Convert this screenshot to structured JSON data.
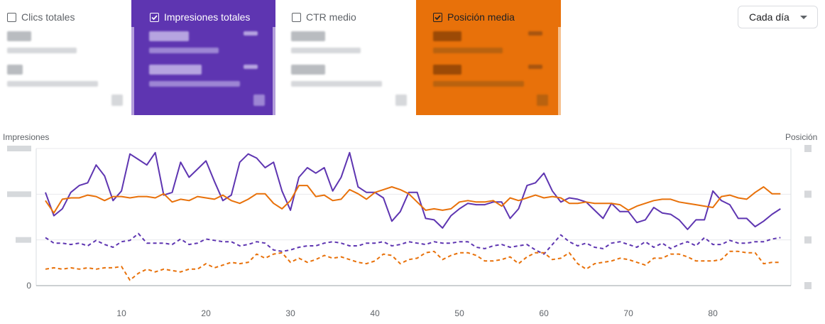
{
  "metrics": [
    {
      "label": "Clics totales",
      "checked": false
    },
    {
      "label": "Impresiones totales",
      "checked": true,
      "color": "#5e35b1"
    },
    {
      "label": "CTR medio",
      "checked": false
    },
    {
      "label": "Posición media",
      "checked": true,
      "color": "#e8710a"
    }
  ],
  "granularity": {
    "label": "Cada día"
  },
  "chart_data": {
    "type": "line",
    "left_axis_label": "Impresiones",
    "right_axis_label": "Posición",
    "y_left_min_label": "0",
    "x_ticks": [
      "10",
      "20",
      "30",
      "40",
      "50",
      "60",
      "70",
      "80"
    ],
    "series_colors": {
      "impressions": "#5e35b1",
      "position": "#e8710a"
    },
    "x": [
      1,
      2,
      3,
      4,
      5,
      6,
      7,
      8,
      9,
      10,
      11,
      12,
      13,
      14,
      15,
      16,
      17,
      18,
      19,
      20,
      21,
      22,
      23,
      24,
      25,
      26,
      27,
      28,
      29,
      30,
      31,
      32,
      33,
      34,
      35,
      36,
      37,
      38,
      39,
      40,
      41,
      42,
      43,
      44,
      45,
      46,
      47,
      48,
      49,
      50,
      51,
      52,
      53,
      54,
      55,
      56,
      57,
      58,
      59,
      60,
      61,
      62,
      63,
      64,
      65,
      66,
      67,
      68,
      69,
      70,
      71,
      72,
      73,
      74,
      75,
      76,
      77,
      78,
      79,
      80,
      81,
      82,
      83,
      84,
      85,
      86,
      87,
      88
    ],
    "series": [
      {
        "color": "#5e35b1",
        "style": "solid",
        "values": [
          0.68,
          0.51,
          0.56,
          0.68,
          0.73,
          0.75,
          0.88,
          0.8,
          0.62,
          0.69,
          0.96,
          0.92,
          0.88,
          0.97,
          0.66,
          0.68,
          0.9,
          0.79,
          0.85,
          0.91,
          0.76,
          0.62,
          0.66,
          0.9,
          0.96,
          0.93,
          0.86,
          0.9,
          0.69,
          0.55,
          0.79,
          0.86,
          0.82,
          0.86,
          0.69,
          0.79,
          0.97,
          0.72,
          0.68,
          0.68,
          0.64,
          0.47,
          0.54,
          0.68,
          0.68,
          0.49,
          0.48,
          0.42,
          0.51,
          0.56,
          0.6,
          0.59,
          0.59,
          0.61,
          0.61,
          0.49,
          0.56,
          0.73,
          0.75,
          0.82,
          0.69,
          0.61,
          0.64,
          0.63,
          0.61,
          0.55,
          0.49,
          0.6,
          0.54,
          0.54,
          0.46,
          0.48,
          0.57,
          0.53,
          0.52,
          0.48,
          0.41,
          0.48,
          0.48,
          0.69,
          0.62,
          0.59,
          0.49,
          0.49,
          0.43,
          0.47,
          0.52,
          0.56
        ]
      },
      {
        "color": "#e8710a",
        "style": "solid",
        "values": [
          0.62,
          0.53,
          0.63,
          0.64,
          0.64,
          0.66,
          0.65,
          0.62,
          0.65,
          0.65,
          0.64,
          0.65,
          0.65,
          0.64,
          0.67,
          0.61,
          0.63,
          0.62,
          0.65,
          0.64,
          0.63,
          0.66,
          0.62,
          0.6,
          0.63,
          0.67,
          0.67,
          0.6,
          0.56,
          0.62,
          0.73,
          0.73,
          0.65,
          0.66,
          0.62,
          0.63,
          0.7,
          0.67,
          0.63,
          0.68,
          0.7,
          0.72,
          0.7,
          0.67,
          0.61,
          0.55,
          0.56,
          0.55,
          0.56,
          0.61,
          0.62,
          0.61,
          0.61,
          0.62,
          0.58,
          0.64,
          0.62,
          0.64,
          0.66,
          0.64,
          0.65,
          0.64,
          0.6,
          0.6,
          0.61,
          0.6,
          0.6,
          0.6,
          0.59,
          0.55,
          0.58,
          0.6,
          0.62,
          0.63,
          0.63,
          0.61,
          0.6,
          0.59,
          0.58,
          0.57,
          0.65,
          0.66,
          0.64,
          0.63,
          0.68,
          0.72,
          0.67,
          0.67
        ]
      },
      {
        "color": "#5e35b1",
        "style": "dashed",
        "values": [
          0.35,
          0.31,
          0.31,
          0.3,
          0.31,
          0.29,
          0.33,
          0.3,
          0.28,
          0.32,
          0.33,
          0.38,
          0.31,
          0.31,
          0.31,
          0.3,
          0.34,
          0.3,
          0.31,
          0.34,
          0.33,
          0.32,
          0.32,
          0.29,
          0.3,
          0.32,
          0.31,
          0.26,
          0.25,
          0.26,
          0.28,
          0.29,
          0.29,
          0.31,
          0.32,
          0.31,
          0.29,
          0.29,
          0.31,
          0.31,
          0.32,
          0.29,
          0.3,
          0.32,
          0.31,
          0.3,
          0.32,
          0.31,
          0.31,
          0.32,
          0.32,
          0.28,
          0.27,
          0.29,
          0.3,
          0.28,
          0.29,
          0.3,
          0.26,
          0.23,
          0.3,
          0.37,
          0.32,
          0.29,
          0.31,
          0.28,
          0.27,
          0.31,
          0.32,
          0.3,
          0.28,
          0.32,
          0.28,
          0.31,
          0.27,
          0.3,
          0.32,
          0.29,
          0.35,
          0.3,
          0.3,
          0.33,
          0.31,
          0.31,
          0.32,
          0.32,
          0.34,
          0.35
        ]
      },
      {
        "color": "#e8710a",
        "style": "dashed",
        "values": [
          0.12,
          0.13,
          0.12,
          0.13,
          0.12,
          0.13,
          0.12,
          0.13,
          0.13,
          0.14,
          0.04,
          0.09,
          0.12,
          0.1,
          0.12,
          0.11,
          0.1,
          0.12,
          0.12,
          0.16,
          0.13,
          0.15,
          0.17,
          0.16,
          0.17,
          0.23,
          0.2,
          0.23,
          0.24,
          0.17,
          0.2,
          0.17,
          0.19,
          0.22,
          0.2,
          0.21,
          0.19,
          0.17,
          0.16,
          0.18,
          0.23,
          0.22,
          0.16,
          0.19,
          0.2,
          0.24,
          0.25,
          0.19,
          0.22,
          0.24,
          0.24,
          0.22,
          0.18,
          0.18,
          0.19,
          0.21,
          0.16,
          0.21,
          0.24,
          0.24,
          0.19,
          0.2,
          0.24,
          0.16,
          0.12,
          0.16,
          0.17,
          0.18,
          0.2,
          0.19,
          0.17,
          0.15,
          0.2,
          0.2,
          0.23,
          0.23,
          0.21,
          0.18,
          0.18,
          0.18,
          0.19,
          0.25,
          0.25,
          0.24,
          0.24,
          0.16,
          0.17,
          0.17
        ]
      }
    ]
  }
}
